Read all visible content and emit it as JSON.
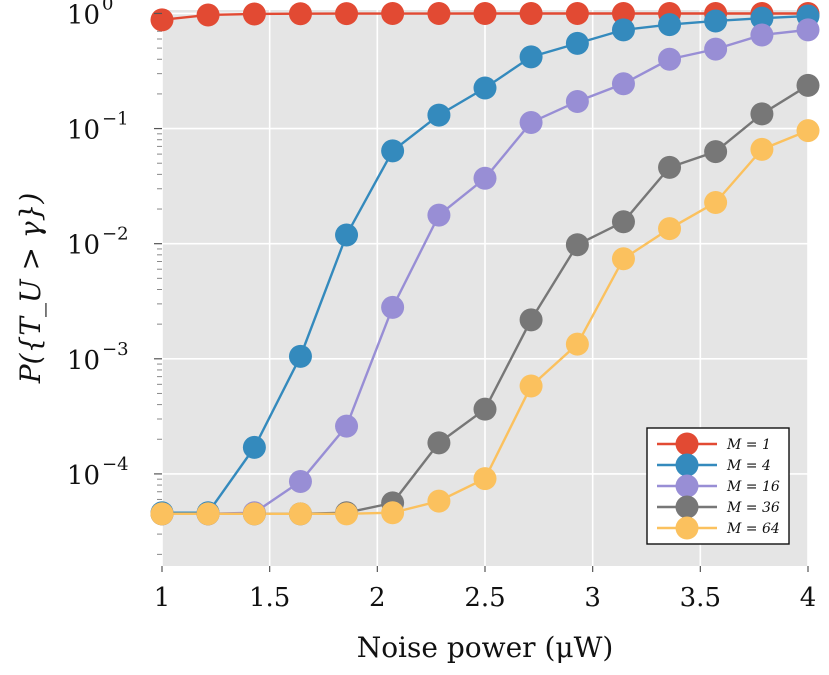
{
  "chart_data": {
    "type": "line",
    "xlabel": "Noise power (μW)",
    "ylabel": "P({T_U > γ})",
    "xlim": [
      1,
      4
    ],
    "ylim_log10": [
      -4.8,
      0.03
    ],
    "yscale": "log",
    "grid": true,
    "legend_position": "bottom-right",
    "x_ticks": [
      1,
      1.5,
      2,
      2.5,
      3,
      3.5,
      4
    ],
    "x_tick_labels": [
      "1",
      "1.5",
      "2",
      "2.5",
      "3",
      "3.5",
      "4"
    ],
    "y_ticks_exp": [
      0,
      -1,
      -2,
      -3,
      -4
    ],
    "y_tick_labels": [
      "10",
      "10",
      "10",
      "10",
      "10"
    ],
    "y_tick_exponents": [
      "0",
      "−1",
      "−2",
      "−3",
      "−4"
    ],
    "x": [
      1.0,
      1.214,
      1.429,
      1.643,
      1.857,
      2.071,
      2.286,
      2.5,
      2.714,
      2.929,
      3.143,
      3.357,
      3.571,
      3.786,
      4.0
    ],
    "series": [
      {
        "name": "M = 1",
        "color": "#e24a33",
        "values": [
          0.88,
          0.97,
          0.99,
          0.995,
          0.997,
          0.998,
          0.998,
          0.999,
          0.999,
          0.999,
          0.999,
          0.999,
          0.999,
          0.999,
          0.999
        ]
      },
      {
        "name": "M = 4",
        "color": "#348abd",
        "values": [
          4.6e-05,
          4.6e-05,
          0.00017,
          0.00105,
          0.0119,
          0.064,
          0.131,
          0.225,
          0.42,
          0.55,
          0.72,
          0.8,
          0.86,
          0.91,
          0.95
        ]
      },
      {
        "name": "M = 16",
        "color": "#988ed5",
        "values": [
          4.5e-05,
          4.5e-05,
          4.6e-05,
          8.6e-05,
          0.00026,
          0.0028,
          0.0177,
          0.037,
          0.113,
          0.172,
          0.245,
          0.4,
          0.49,
          0.65,
          0.72
        ]
      },
      {
        "name": "M = 36",
        "color": "#777777",
        "values": [
          4.5e-05,
          4.5e-05,
          4.5e-05,
          4.5e-05,
          4.6e-05,
          5.6e-05,
          0.000186,
          0.000365,
          0.00218,
          0.0098,
          0.0155,
          0.046,
          0.063,
          0.134,
          0.237
        ]
      },
      {
        "name": "M = 64",
        "color": "#fbc15e",
        "values": [
          4.5e-05,
          4.5e-05,
          4.5e-05,
          4.5e-05,
          4.5e-05,
          4.6e-05,
          5.8e-05,
          9.1e-05,
          0.00058,
          0.00134,
          0.0074,
          0.0135,
          0.0228,
          0.066,
          0.096
        ]
      }
    ]
  },
  "legend": {
    "entries": [
      "M = 1",
      "M = 4",
      "M = 16",
      "M = 36",
      "M = 64"
    ]
  }
}
